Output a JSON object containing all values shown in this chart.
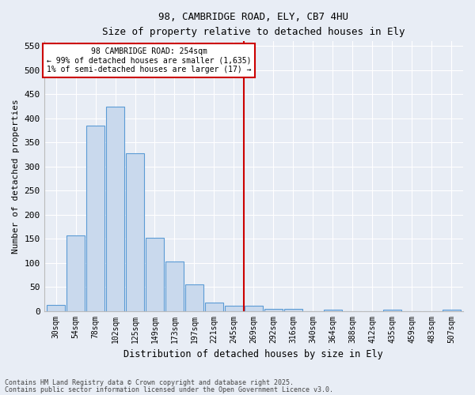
{
  "title_line1": "98, CAMBRIDGE ROAD, ELY, CB7 4HU",
  "title_line2": "Size of property relative to detached houses in Ely",
  "xlabel": "Distribution of detached houses by size in Ely",
  "ylabel": "Number of detached properties",
  "bar_labels": [
    "30sqm",
    "54sqm",
    "78sqm",
    "102sqm",
    "125sqm",
    "149sqm",
    "173sqm",
    "197sqm",
    "221sqm",
    "245sqm",
    "269sqm",
    "292sqm",
    "316sqm",
    "340sqm",
    "364sqm",
    "388sqm",
    "412sqm",
    "435sqm",
    "459sqm",
    "483sqm",
    "507sqm"
  ],
  "bar_values": [
    13,
    157,
    385,
    425,
    328,
    152,
    102,
    55,
    18,
    10,
    10,
    5,
    5,
    0,
    3,
    0,
    0,
    2,
    0,
    0,
    3
  ],
  "bar_color": "#c9d9ed",
  "bar_edge_color": "#5b9bd5",
  "vline_x_index": 9.5,
  "annotation_title": "98 CAMBRIDGE ROAD: 254sqm",
  "annotation_line1": "← 99% of detached houses are smaller (1,635)",
  "annotation_line2": "1% of semi-detached houses are larger (17) →",
  "annotation_box_color": "#ffffff",
  "annotation_box_edge_color": "#cc0000",
  "vline_color": "#cc0000",
  "ylim": [
    0,
    560
  ],
  "yticks": [
    0,
    50,
    100,
    150,
    200,
    250,
    300,
    350,
    400,
    450,
    500,
    550
  ],
  "background_color": "#e8edf5",
  "grid_color": "#ffffff",
  "footer_line1": "Contains HM Land Registry data © Crown copyright and database right 2025.",
  "footer_line2": "Contains public sector information licensed under the Open Government Licence v3.0."
}
